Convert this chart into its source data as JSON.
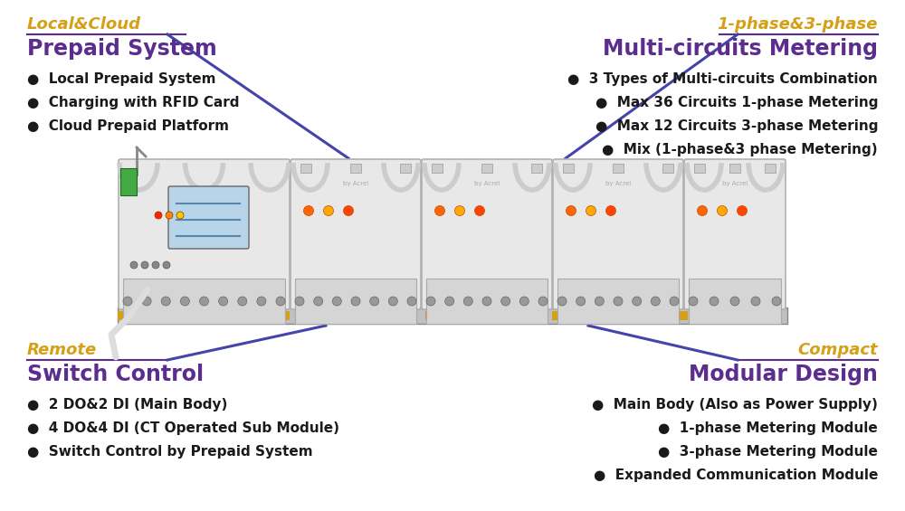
{
  "bg_color": "#ffffff",
  "label_color": "#d4a017",
  "title_color": "#5b2d8e",
  "bullet_color": "#1a1a1a",
  "line_color": "#4444aa",
  "top_left_label": "Local&Cloud",
  "top_left_title": "Prepaid System",
  "top_left_bullets": [
    "Local Prepaid System",
    "Charging with RFID Card",
    "Cloud Prepaid Platform"
  ],
  "top_right_label": "1-phase&3-phase",
  "top_right_title": "Multi-circuits Metering",
  "top_right_bullets": [
    "3 Types of Multi-circuits Combination",
    "Max 36 Circuits 1-phase Metering",
    "Max 12 Circuits 3-phase Metering",
    "Mix (1-phase&3 phase Metering)"
  ],
  "bot_left_label": "Remote",
  "bot_left_title": "Switch Control",
  "bot_left_bullets": [
    "2 DO&2 DI (Main Body)",
    "4 DO&4 DI (CT Operated Sub Module)",
    "Switch Control by Prepaid System"
  ],
  "bot_right_label": "Compact",
  "bot_right_title": "Modular Design",
  "bot_right_bullets": [
    "Main Body (Also as Power Supply)",
    "1-phase Metering Module",
    "3-phase Metering Module",
    "Expanded Communication Module"
  ]
}
